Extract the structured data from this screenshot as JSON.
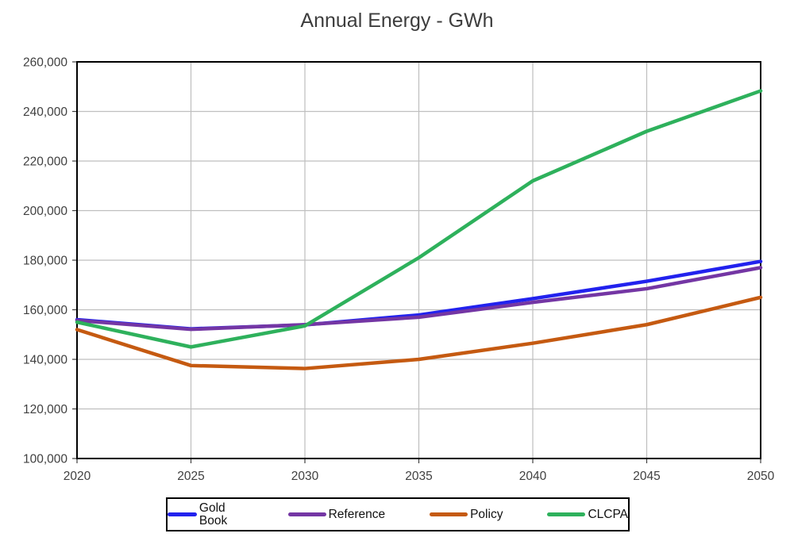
{
  "chart_data": {
    "type": "line",
    "title": "Annual Energy - GWh",
    "xlabel": "",
    "ylabel": "",
    "x": [
      2020,
      2025,
      2030,
      2035,
      2040,
      2045,
      2050
    ],
    "x_tick_labels": [
      "2020",
      "2025",
      "2030",
      "2035",
      "2040",
      "2045",
      "2050"
    ],
    "xlim": [
      2020,
      2050
    ],
    "y_ticks": [
      100000,
      120000,
      140000,
      160000,
      180000,
      200000,
      220000,
      240000,
      260000
    ],
    "y_tick_labels": [
      "100,000",
      "120,000",
      "140,000",
      "160,000",
      "180,000",
      "200,000",
      "220,000",
      "240,000",
      "260,000"
    ],
    "ylim": [
      100000,
      260000
    ],
    "grid": true,
    "legend_position": "bottom",
    "colors": {
      "grid": "#bfbfbf",
      "border": "#000000",
      "tick": "#404040",
      "tick_label": "#404040",
      "title": "#3d3d3d"
    },
    "series": [
      {
        "name": "Gold Book",
        "color": "#2222ee",
        "values": [
          156000,
          152300,
          153900,
          157900,
          164500,
          171500,
          179500
        ]
      },
      {
        "name": "Reference",
        "color": "#7436a4",
        "values": [
          155700,
          152100,
          154000,
          157000,
          163000,
          168500,
          177000
        ]
      },
      {
        "name": "Policy",
        "color": "#c55a11",
        "values": [
          152000,
          137500,
          136300,
          140000,
          146500,
          154000,
          165000
        ]
      },
      {
        "name": "CLCPA",
        "color": "#2eb15c",
        "values": [
          155000,
          145000,
          153500,
          181000,
          212000,
          232000,
          248300
        ]
      }
    ]
  }
}
